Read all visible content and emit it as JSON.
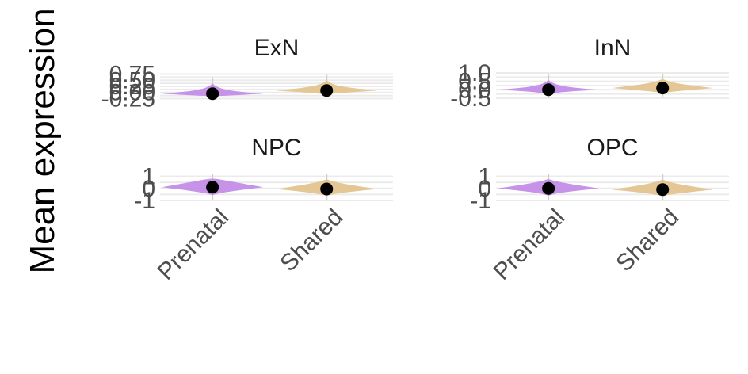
{
  "chart_data": {
    "type": "violin",
    "ylabel": "Mean expression",
    "categories": [
      "Prenatal",
      "Shared"
    ],
    "colors": {
      "Prenatal": "#c48de8",
      "Shared": "#e3c48f"
    },
    "panels": [
      {
        "title": "ExN",
        "yticks": [
          {
            "value": -0.25,
            "label": "-0.25"
          },
          {
            "value": 0.0,
            "label": "0.00"
          },
          {
            "value": 0.25,
            "label": "0.25"
          },
          {
            "value": 0.5,
            "label": "0.50"
          },
          {
            "value": 0.75,
            "label": "0.75"
          }
        ],
        "ylim": [
          -0.3,
          0.8
        ],
        "groups": [
          {
            "category": "Prenatal",
            "mean": -0.05,
            "ymin": -0.2,
            "ymax": 0.6,
            "spread": 0.12
          },
          {
            "category": "Shared",
            "mean": 0.08,
            "ymin": -0.2,
            "ymax": 0.72,
            "spread": 0.16
          }
        ]
      },
      {
        "title": "InN",
        "yticks": [
          {
            "value": -0.5,
            "label": "-0.5"
          },
          {
            "value": 0.0,
            "label": "0.0"
          },
          {
            "value": 0.5,
            "label": "0.5"
          },
          {
            "value": 1.0,
            "label": "1.0"
          }
        ],
        "ylim": [
          -0.6,
          1.0
        ],
        "groups": [
          {
            "category": "Prenatal",
            "mean": 0.0,
            "ymin": -0.5,
            "ymax": 0.9,
            "spread": 0.1
          },
          {
            "category": "Shared",
            "mean": 0.1,
            "ymin": -0.4,
            "ymax": 0.95,
            "spread": 0.2
          }
        ]
      },
      {
        "title": "NPC",
        "yticks": [
          {
            "value": -1,
            "label": "-1"
          },
          {
            "value": 0,
            "label": "0"
          },
          {
            "value": 1,
            "label": "1"
          }
        ],
        "ylim": [
          -1.2,
          1.3
        ],
        "groups": [
          {
            "category": "Prenatal",
            "mean": 0.1,
            "ymin": -1.0,
            "ymax": 1.2,
            "spread": 0.3
          },
          {
            "category": "Shared",
            "mean": -0.05,
            "ymin": -1.0,
            "ymax": 1.2,
            "spread": 0.25
          }
        ]
      },
      {
        "title": "OPC",
        "yticks": [
          {
            "value": -1,
            "label": "-1"
          },
          {
            "value": 0,
            "label": "0"
          },
          {
            "value": 1,
            "label": "1"
          }
        ],
        "ylim": [
          -1.2,
          1.3
        ],
        "groups": [
          {
            "category": "Prenatal",
            "mean": 0.0,
            "ymin": -1.0,
            "ymax": 1.2,
            "spread": 0.25
          },
          {
            "category": "Shared",
            "mean": -0.1,
            "ymin": -1.0,
            "ymax": 1.2,
            "spread": 0.25
          }
        ]
      }
    ]
  }
}
